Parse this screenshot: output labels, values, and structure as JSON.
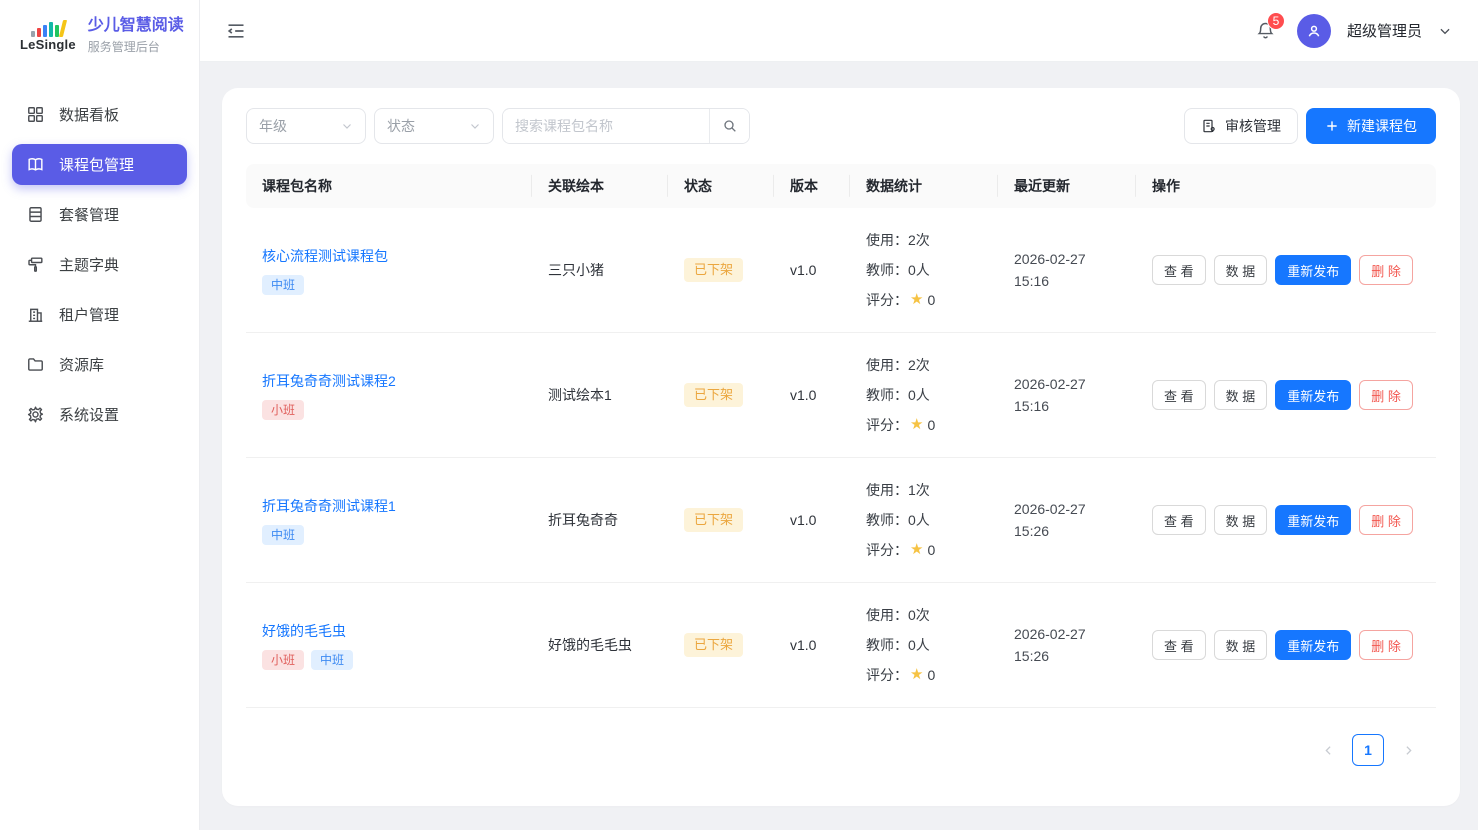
{
  "brand": {
    "logo_text": "LeSingle",
    "title": "少儿智慧阅读",
    "subtitle": "服务管理后台"
  },
  "sidebar": {
    "items": [
      {
        "label": "数据看板",
        "icon": "dashboard-icon",
        "active": false
      },
      {
        "label": "课程包管理",
        "icon": "book-icon",
        "active": true
      },
      {
        "label": "套餐管理",
        "icon": "package-icon",
        "active": false
      },
      {
        "label": "主题字典",
        "icon": "paint-roller-icon",
        "active": false
      },
      {
        "label": "租户管理",
        "icon": "building-icon",
        "active": false
      },
      {
        "label": "资源库",
        "icon": "folder-icon",
        "active": false
      },
      {
        "label": "系统设置",
        "icon": "gear-icon",
        "active": false
      }
    ]
  },
  "header": {
    "notification_count": "5",
    "username": "超级管理员",
    "icons": [
      "menu-fold-icon",
      "bell-icon",
      "avatar-user-icon",
      "chevron-down-icon"
    ]
  },
  "toolbar": {
    "grade_filter_value": "年级",
    "status_filter_value": "状态",
    "search_placeholder": "搜索课程包名称",
    "audit_button": "审核管理",
    "create_button": "新建课程包"
  },
  "table": {
    "columns": [
      "课程包名称",
      "关联绘本",
      "状态",
      "版本",
      "数据统计",
      "最近更新",
      "操作"
    ],
    "stats_labels": {
      "usage": "使用：",
      "teacher": "教师：",
      "rating": "评分："
    },
    "actions": {
      "view": "查 看",
      "data": "数 据",
      "republish": "重新发布",
      "delete": "删 除"
    },
    "rows": [
      {
        "name": "核心流程测试课程包",
        "tags": [
          {
            "label": "中班",
            "type": "blue"
          }
        ],
        "book": "三只小猪",
        "status": "已下架",
        "version": "v1.0",
        "usage": "2次",
        "teachers": "0人",
        "rating": "0",
        "updated_date": "2026-02-27",
        "updated_time": "15:16"
      },
      {
        "name": "折耳兔奇奇测试课程2",
        "tags": [
          {
            "label": "小班",
            "type": "red"
          }
        ],
        "book": "测试绘本1",
        "status": "已下架",
        "version": "v1.0",
        "usage": "2次",
        "teachers": "0人",
        "rating": "0",
        "updated_date": "2026-02-27",
        "updated_time": "15:16"
      },
      {
        "name": "折耳兔奇奇测试课程1",
        "tags": [
          {
            "label": "中班",
            "type": "blue"
          }
        ],
        "book": "折耳兔奇奇",
        "status": "已下架",
        "version": "v1.0",
        "usage": "1次",
        "teachers": "0人",
        "rating": "0",
        "updated_date": "2026-02-27",
        "updated_time": "15:26"
      },
      {
        "name": "好饿的毛毛虫",
        "tags": [
          {
            "label": "小班",
            "type": "red"
          },
          {
            "label": "中班",
            "type": "blue"
          }
        ],
        "book": "好饿的毛毛虫",
        "status": "已下架",
        "version": "v1.0",
        "usage": "0次",
        "teachers": "0人",
        "rating": "0",
        "updated_date": "2026-02-27",
        "updated_time": "15:26"
      }
    ]
  },
  "pagination": {
    "current": "1"
  },
  "colors": {
    "brand_purple": "#5a5ce6",
    "primary_blue": "#1677ff",
    "notification_red": "#ff4d4f",
    "status_offline_bg": "#fdf3d9",
    "status_offline_text": "#eba63e",
    "tag_blue_bg": "#e1efff",
    "tag_blue_text": "#3d8af2",
    "tag_red_bg": "#fbe2e2",
    "tag_red_text": "#e05f5c",
    "star_gold": "#f6c344"
  }
}
